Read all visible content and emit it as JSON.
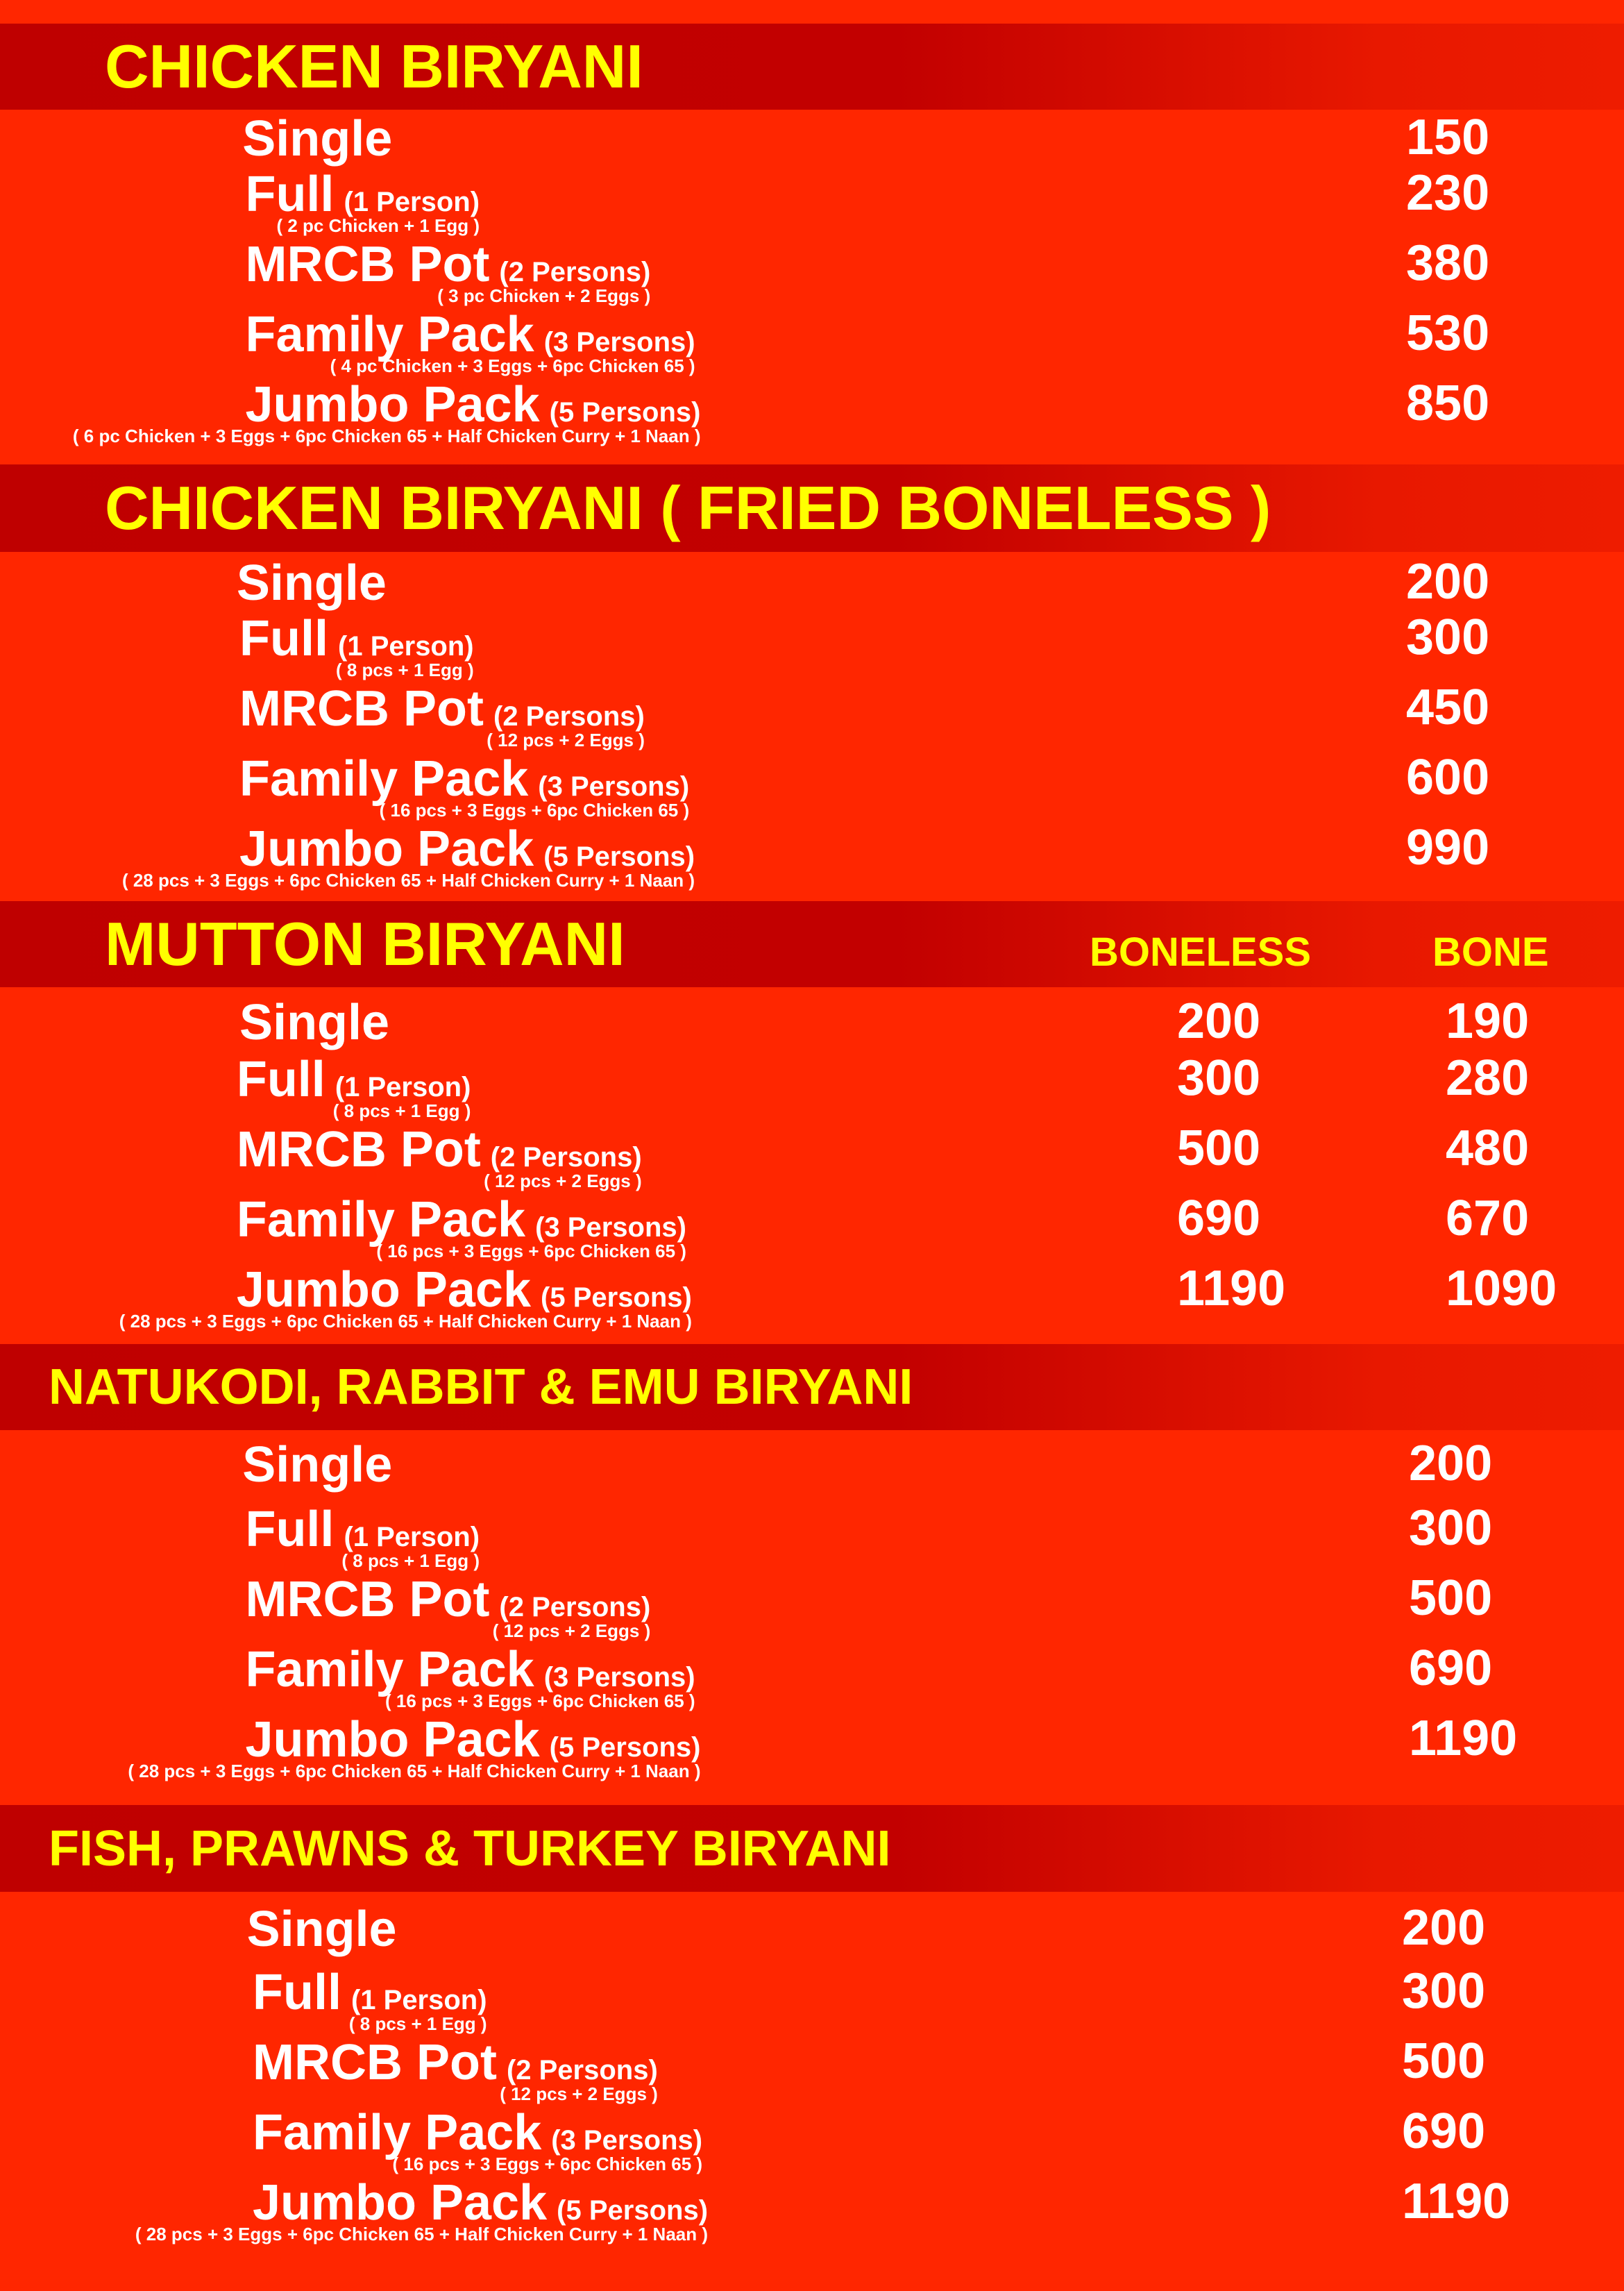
{
  "colors": {
    "background": "#ff2600",
    "header_band": "#bf0000",
    "header_text": "#ffff00",
    "item_text": "#ffffff"
  },
  "sections": [
    {
      "title": "CHICKEN BIRYANI",
      "items": [
        {
          "name": "Single",
          "persons": "",
          "detail": "",
          "prices": [
            "150"
          ]
        },
        {
          "name": "Full",
          "persons": "(1 Person)",
          "detail": "( 2 pc Chicken + 1 Egg )",
          "prices": [
            "230"
          ]
        },
        {
          "name": "MRCB Pot",
          "persons": "(2 Persons)",
          "detail": "( 3 pc Chicken + 2 Eggs )",
          "prices": [
            "380"
          ]
        },
        {
          "name": "Family Pack",
          "persons": "(3 Persons)",
          "detail": "( 4 pc Chicken + 3 Eggs + 6pc Chicken 65 )",
          "prices": [
            "530"
          ]
        },
        {
          "name": "Jumbo Pack",
          "persons": "(5 Persons)",
          "detail": "( 6 pc Chicken + 3 Eggs + 6pc Chicken 65 + Half Chicken Curry + 1 Naan )",
          "prices": [
            "850"
          ]
        }
      ]
    },
    {
      "title": "CHICKEN BIRYANI ( FRIED BONELESS )",
      "items": [
        {
          "name": "Single",
          "persons": "",
          "detail": "",
          "prices": [
            "200"
          ]
        },
        {
          "name": "Full",
          "persons": "(1 Person)",
          "detail": "( 8 pcs + 1 Egg )",
          "prices": [
            "300"
          ]
        },
        {
          "name": "MRCB Pot",
          "persons": "(2 Persons)",
          "detail": "( 12 pcs + 2 Eggs )",
          "prices": [
            "450"
          ]
        },
        {
          "name": "Family Pack",
          "persons": "(3 Persons)",
          "detail": "( 16 pcs  + 3 Eggs + 6pc Chicken 65 )",
          "prices": [
            "600"
          ]
        },
        {
          "name": "Jumbo Pack",
          "persons": "(5 Persons)",
          "detail": "( 28 pcs + 3 Eggs + 6pc Chicken 65 + Half Chicken Curry + 1 Naan )",
          "prices": [
            "990"
          ]
        }
      ]
    },
    {
      "title": "MUTTON BIRYANI",
      "columns": [
        "BONELESS",
        "BONE"
      ],
      "items": [
        {
          "name": "Single",
          "persons": "",
          "detail": "",
          "prices": [
            "200",
            "190"
          ]
        },
        {
          "name": "Full",
          "persons": "(1 Person)",
          "detail": "( 8 pcs + 1 Egg )",
          "prices": [
            "300",
            "280"
          ]
        },
        {
          "name": "MRCB Pot",
          "persons": "(2 Persons)",
          "detail": "( 12 pcs + 2 Eggs )",
          "prices": [
            "500",
            "480"
          ]
        },
        {
          "name": "Family Pack",
          "persons": "(3 Persons)",
          "detail": "( 16 pcs  + 3 Eggs + 6pc Chicken 65 )",
          "prices": [
            "690",
            "670"
          ]
        },
        {
          "name": "Jumbo Pack",
          "persons": "(5 Persons)",
          "detail": "( 28 pcs + 3 Eggs + 6pc Chicken 65 + Half Chicken Curry + 1 Naan )",
          "prices": [
            "1190",
            "1090"
          ]
        }
      ]
    },
    {
      "title": "NATUKODI, RABBIT & EMU BIRYANI",
      "items": [
        {
          "name": "Single",
          "persons": "",
          "detail": "",
          "prices": [
            "200"
          ]
        },
        {
          "name": "Full",
          "persons": "(1 Person)",
          "detail": "( 8 pcs + 1 Egg )",
          "prices": [
            "300"
          ]
        },
        {
          "name": "MRCB Pot",
          "persons": "(2 Persons)",
          "detail": "( 12 pcs + 2 Eggs )",
          "prices": [
            "500"
          ]
        },
        {
          "name": "Family Pack",
          "persons": "(3 Persons)",
          "detail": "( 16 pcs  + 3 Eggs + 6pc Chicken 65 )",
          "prices": [
            "690"
          ]
        },
        {
          "name": "Jumbo Pack",
          "persons": "(5 Persons)",
          "detail": "( 28 pcs + 3 Eggs + 6pc Chicken 65 + Half Chicken Curry + 1 Naan )",
          "prices": [
            "1190"
          ]
        }
      ]
    },
    {
      "title": "FISH, PRAWNS & TURKEY BIRYANI",
      "items": [
        {
          "name": "Single",
          "persons": "",
          "detail": "",
          "prices": [
            "200"
          ]
        },
        {
          "name": "Full",
          "persons": "(1 Person)",
          "detail": "( 8 pcs + 1 Egg )",
          "prices": [
            "300"
          ]
        },
        {
          "name": "MRCB Pot",
          "persons": "(2 Persons)",
          "detail": "( 12 pcs + 2 Eggs )",
          "prices": [
            "500"
          ]
        },
        {
          "name": "Family Pack",
          "persons": "(3 Persons)",
          "detail": "( 16 pcs  + 3 Eggs + 6pc Chicken 65 )",
          "prices": [
            "690"
          ]
        },
        {
          "name": "Jumbo Pack",
          "persons": "(5 Persons)",
          "detail": "( 28 pcs + 3 Eggs + 6pc Chicken 65 + Half Chicken Curry + 1 Naan )",
          "prices": [
            "1190"
          ]
        }
      ]
    }
  ]
}
